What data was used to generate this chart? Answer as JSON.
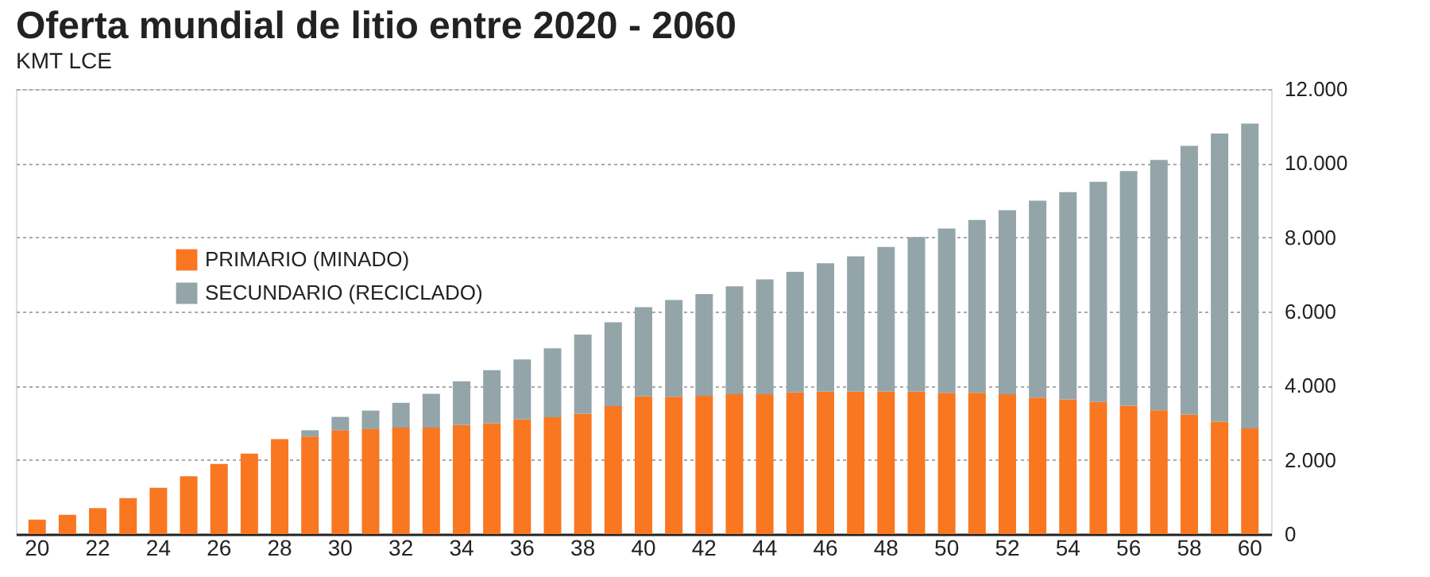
{
  "chart_data": {
    "type": "bar",
    "title": "Oferta mundial de litio entre 2020 - 2060",
    "subtitle": "KMT LCE",
    "categories": [
      "20",
      null,
      "22",
      null,
      "24",
      null,
      "26",
      null,
      "28",
      null,
      "30",
      null,
      "32",
      null,
      "34",
      null,
      "36",
      null,
      "38",
      null,
      "40",
      null,
      "42",
      null,
      "44",
      null,
      "46",
      null,
      "48",
      null,
      "50",
      null,
      "52",
      null,
      "54",
      null,
      "56",
      null,
      "58",
      null,
      "60"
    ],
    "stacked": true,
    "series": [
      {
        "name": "PRIMARIO (MINADO)",
        "color": "#f87720",
        "values": [
          390,
          520,
          700,
          970,
          1250,
          1560,
          1890,
          2170,
          2560,
          2630,
          2800,
          2830,
          2870,
          2870,
          2940,
          2990,
          3090,
          3150,
          3240,
          3450,
          3710,
          3700,
          3730,
          3770,
          3770,
          3820,
          3840,
          3840,
          3840,
          3840,
          3810,
          3810,
          3770,
          3680,
          3630,
          3560,
          3460,
          3340,
          3220,
          3030,
          2850
        ]
      },
      {
        "name": "SECUNDARIO (RECICLADO)",
        "color": "#94a5aa",
        "values": [
          0,
          0,
          0,
          0,
          0,
          0,
          0,
          0,
          0,
          170,
          360,
          500,
          670,
          910,
          1180,
          1430,
          1620,
          1860,
          2140,
          2260,
          2410,
          2610,
          2740,
          2910,
          3100,
          3250,
          3460,
          3650,
          3900,
          4170,
          4430,
          4660,
          4960,
          5310,
          5590,
          5940,
          6330,
          6750,
          7250,
          7770,
          8220
        ]
      }
    ],
    "ylim": [
      0,
      12000
    ],
    "yticks": [
      0,
      {
        "value": 2000,
        "label": "2.000"
      },
      {
        "value": 4000,
        "label": "4.000"
      },
      {
        "value": 6000,
        "label": "6.000"
      },
      {
        "value": 8000,
        "label": "8.000"
      },
      {
        "value": 10000,
        "label": "10.000"
      },
      {
        "value": 12000,
        "label": "12.000"
      }
    ],
    "grid": "y",
    "legend": "top left"
  }
}
